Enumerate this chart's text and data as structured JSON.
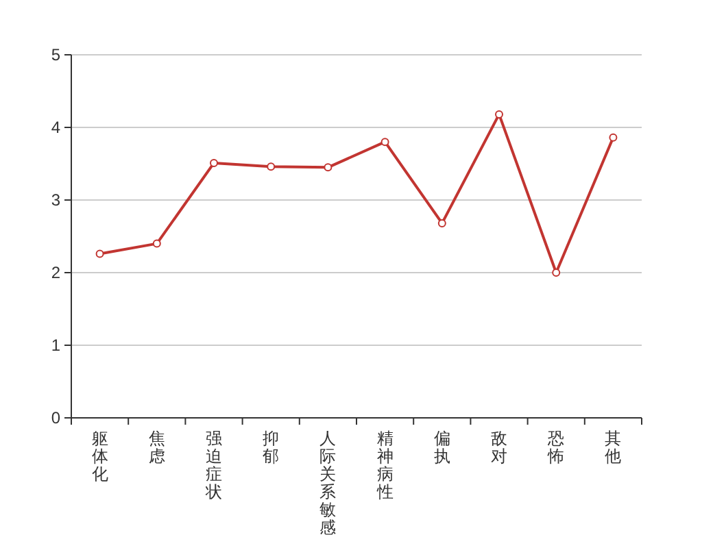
{
  "chart_data": {
    "type": "line",
    "categories": [
      "躯体化",
      "焦虑",
      "强迫症状",
      "抑郁",
      "人际关系敏感",
      "精神病性",
      "偏执",
      "敌对",
      "恐怖",
      "其他"
    ],
    "values": [
      2.26,
      2.4,
      3.51,
      3.46,
      3.45,
      3.8,
      2.68,
      4.18,
      2.0,
      3.86
    ],
    "color": "#c23531",
    "ylim": [
      0,
      5
    ],
    "yticks": [
      0,
      1,
      2,
      3,
      4,
      5
    ],
    "grid": "y",
    "marker": "circle"
  }
}
